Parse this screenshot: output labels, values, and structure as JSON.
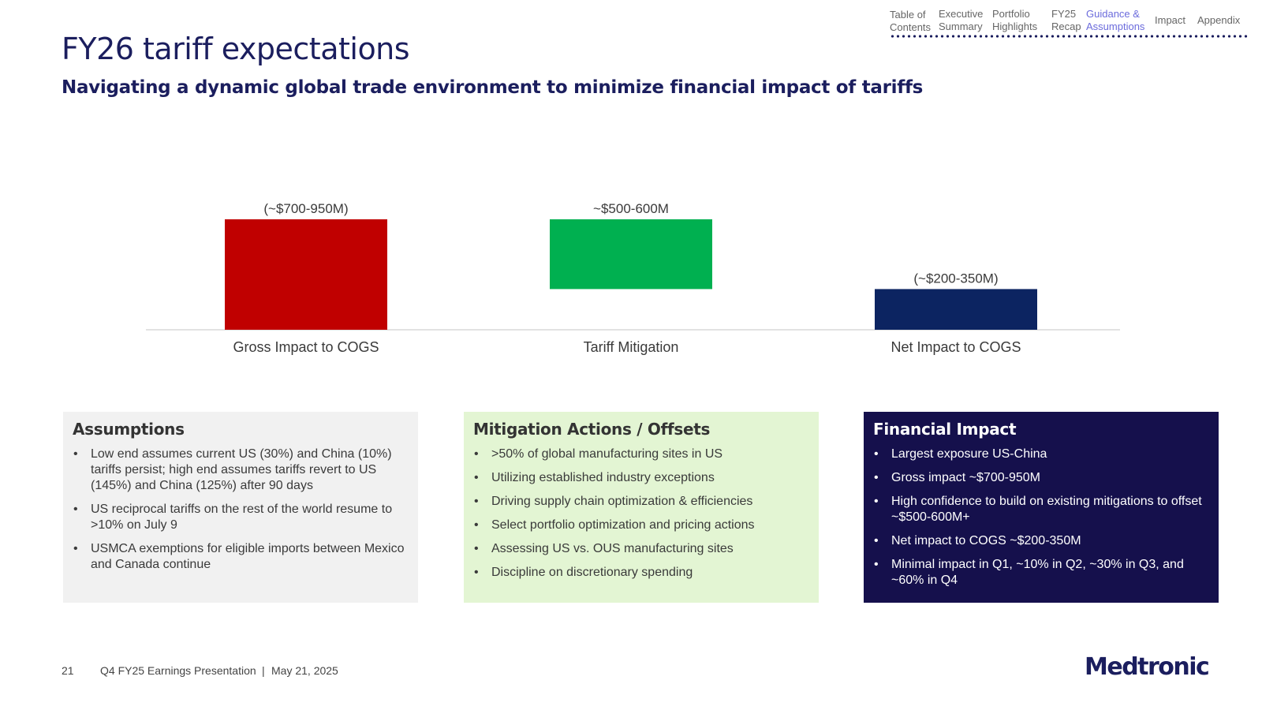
{
  "slide": {
    "title": "FY26 tariff expectations",
    "subtitle": "Navigating a dynamic global trade environment to minimize financial impact of tariffs"
  },
  "nav": {
    "items": [
      {
        "label": "Table of Contents",
        "line1": "Table of",
        "line2": "Contents",
        "active": false
      },
      {
        "label": "Executive Summary",
        "line1": "Executive",
        "line2": "Summary",
        "active": false
      },
      {
        "label": "Portfolio Highlights",
        "line1": "Portfolio",
        "line2": "Highlights",
        "active": false
      },
      {
        "label": "FY25 Recap",
        "line1": "FY25",
        "line2": "Recap",
        "active": false
      },
      {
        "label": "Guidance & Assumptions",
        "line1": "Guidance &",
        "line2": "Assumptions",
        "active": true
      },
      {
        "label": "Impact",
        "line1": "Impact",
        "line2": "",
        "active": false
      },
      {
        "label": "Appendix",
        "line1": "Appendix",
        "line2": "",
        "active": false
      }
    ],
    "active_color": "#6b6bdc"
  },
  "chart_data": {
    "type": "bar",
    "subtype": "waterfall",
    "categories": [
      "Gross Impact to COGS",
      "Tariff Mitigation",
      "Net Impact to COGS"
    ],
    "value_labels": [
      "(~$700-950M)",
      "~$500-600M",
      "(~$200-350M)"
    ],
    "bars": [
      {
        "category": "Gross Impact to COGS",
        "low": 0,
        "high": 950,
        "color": "#c00000"
      },
      {
        "category": "Tariff Mitigation",
        "low": 350,
        "high": 950,
        "color": "#00b050"
      },
      {
        "category": "Net Impact to COGS",
        "low": 0,
        "high": 350,
        "color": "#0c2461"
      }
    ],
    "ylim": [
      0,
      950
    ],
    "grid": false,
    "axis_color": "#d9d9d9"
  },
  "boxes": {
    "assumptions": {
      "title": "Assumptions",
      "bullets": [
        "Low end assumes current US (30%) and China (10%) tariffs persist; high end assumes tariffs revert to US (145%) and China (125%) after 90 days",
        "US reciprocal tariffs on the rest of the world resume to >10% on July 9",
        "USMCA exemptions for eligible imports between Mexico and Canada continue"
      ]
    },
    "mitigation": {
      "title": "Mitigation Actions / Offsets",
      "bullets": [
        ">50% of global manufacturing sites in US",
        "Utilizing established industry exceptions",
        "Driving supply chain optimization & efficiencies",
        "Select portfolio optimization and pricing actions",
        "Assessing US vs. OUS manufacturing sites",
        "Discipline on discretionary spending"
      ]
    },
    "financial": {
      "title": "Financial Impact",
      "bullets": [
        "Largest exposure US-China",
        "Gross impact ~$700-950M",
        "High confidence to build on existing mitigations to offset ~$500-600M+",
        "Net impact to COGS ~$200-350M",
        "Minimal impact in Q1, ~10% in Q2, ~30% in Q3, and ~60% in Q4"
      ]
    }
  },
  "footer": {
    "page_number": "21",
    "presentation": "Q4 FY25 Earnings Presentation",
    "separator": "|",
    "date": "May 21, 2025",
    "logo": "Medtronic"
  }
}
